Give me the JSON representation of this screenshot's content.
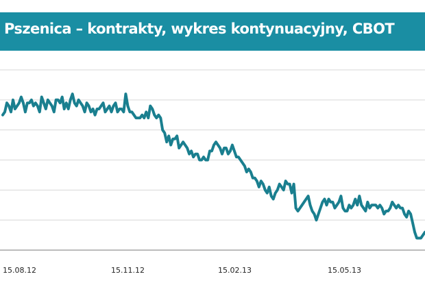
{
  "title": "Pszenica – kontrakty, wykres kontynuacyjny, CBOT",
  "colors": {
    "title_bar": "#1a8ea3",
    "title_text": "#ffffff",
    "line": "#1a7f8f",
    "grid": "#d7d7d7",
    "axis": "#7a7a7a"
  },
  "chart_data": {
    "type": "line",
    "title": "Pszenica – kontrakty, wykres kontynuacyjny, CBOT",
    "xlabel": "",
    "ylabel": "",
    "x_tick_labels": [
      "15.08.12",
      "15.11.12",
      "15.02.13",
      "15.05.13"
    ],
    "y_tick_labels": [],
    "grid": "horizontal",
    "legend": "none",
    "ylim": [
      0,
      6
    ],
    "series": [
      {
        "values": [
          4.5,
          4.6,
          4.9,
          4.8,
          4.6,
          5.0,
          4.7,
          4.8,
          4.9,
          5.1,
          4.9,
          4.6,
          4.9,
          4.9,
          5.0,
          4.8,
          4.9,
          4.8,
          4.6,
          5.1,
          4.9,
          4.7,
          5.0,
          4.9,
          4.8,
          4.6,
          5.0,
          5.0,
          4.9,
          5.1,
          4.7,
          4.9,
          4.7,
          5.0,
          5.2,
          4.9,
          4.8,
          5.0,
          4.9,
          4.8,
          4.6,
          4.9,
          4.8,
          4.6,
          4.7,
          4.5,
          4.7,
          4.7,
          4.8,
          4.9,
          4.6,
          4.7,
          4.8,
          4.6,
          4.8,
          4.9,
          4.6,
          4.7,
          4.7,
          4.6,
          5.2,
          4.8,
          4.6,
          4.6,
          4.5,
          4.4,
          4.4,
          4.4,
          4.5,
          4.4,
          4.6,
          4.4,
          4.8,
          4.7,
          4.5,
          4.4,
          4.5,
          4.4,
          4.0,
          3.9,
          3.6,
          3.8,
          3.5,
          3.7,
          3.7,
          3.8,
          3.4,
          3.5,
          3.6,
          3.5,
          3.4,
          3.2,
          3.3,
          3.1,
          3.2,
          3.2,
          3.0,
          3.0,
          3.1,
          3.0,
          3.0,
          3.3,
          3.3,
          3.5,
          3.6,
          3.5,
          3.4,
          3.2,
          3.4,
          3.4,
          3.2,
          3.3,
          3.5,
          3.3,
          3.1,
          3.1,
          3.0,
          2.9,
          2.8,
          2.6,
          2.7,
          2.6,
          2.4,
          2.4,
          2.3,
          2.1,
          2.3,
          2.2,
          2.0,
          1.9,
          2.1,
          1.8,
          1.7,
          1.9,
          2.0,
          2.2,
          2.1,
          2.0,
          2.3,
          2.2,
          2.2,
          1.9,
          2.2,
          1.4,
          1.3,
          1.4,
          1.5,
          1.6,
          1.7,
          1.8,
          1.5,
          1.3,
          1.2,
          1.0,
          1.2,
          1.4,
          1.6,
          1.7,
          1.5,
          1.7,
          1.6,
          1.6,
          1.4,
          1.5,
          1.6,
          1.8,
          1.4,
          1.3,
          1.3,
          1.5,
          1.4,
          1.5,
          1.7,
          1.5,
          1.8,
          1.5,
          1.4,
          1.3,
          1.6,
          1.4,
          1.5,
          1.5,
          1.5,
          1.4,
          1.5,
          1.4,
          1.2,
          1.3,
          1.3,
          1.4,
          1.6,
          1.5,
          1.4,
          1.5,
          1.4,
          1.4,
          1.2,
          1.1,
          1.3,
          1.2,
          0.9,
          0.6,
          0.4,
          0.4,
          0.4,
          0.5,
          0.6
        ]
      }
    ]
  }
}
